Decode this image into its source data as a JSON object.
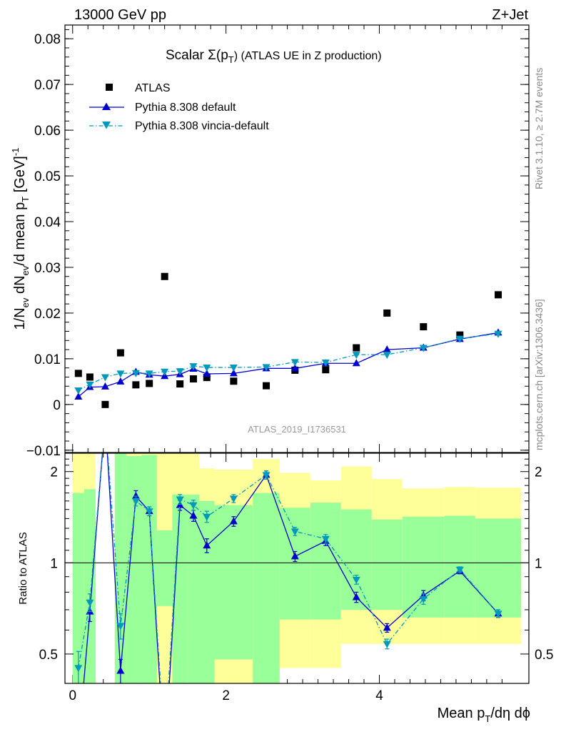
{
  "header": {
    "energy_label": "13000 GeV pp",
    "process_label": "Z+Jet"
  },
  "side_labels": {
    "rivet": "Rivet 3.1.10, ≥ 2.7M events",
    "mcplots": "mcplots.cern.ch [arXiv:1306.3436]"
  },
  "colors": {
    "atlas": "#000000",
    "pythia_default": "#0000cc",
    "pythia_vincia": "#0099bb",
    "band_inner": "#99ff99",
    "band_outer": "#ffff99"
  },
  "chart_data": [
    {
      "type": "scatter",
      "title": "Scalar Σ(p_T) (ATLAS UE in Z production)",
      "title_parts": {
        "main": "Scalar Σ(p",
        "sub": "T",
        "rest": ") (ATLAS UE in Z production)"
      },
      "ylabel": "1/N_ev dN_ev/d mean p_T [GeV]^-1",
      "ylabel_parts": {
        "a": "1/N",
        "a_sub": "ev",
        "b": " dN",
        "b_sub": "ev",
        "c": "/d mean p",
        "c_sub": "T",
        "d": " [GeV]",
        "d_sup": "-1"
      },
      "watermark": "ATLAS_2019_I1736531",
      "xlim": [
        -0.1,
        5.95
      ],
      "ylim": [
        -0.0105,
        0.083
      ],
      "y_ticks": [
        -0.01,
        0,
        0.01,
        0.02,
        0.03,
        0.04,
        0.05,
        0.06,
        0.07,
        0.08
      ],
      "y_tick_labels": [
        "−0.01",
        "0",
        "0.01",
        "0.02",
        "0.03",
        "0.04",
        "0.05",
        "0.06",
        "0.07",
        "0.08"
      ],
      "legend_position": "top-left",
      "series": [
        {
          "name": "ATLAS",
          "marker": "square",
          "x": [
            0.075,
            0.225,
            0.425,
            0.625,
            0.825,
            1.0,
            1.2,
            1.4,
            1.575,
            1.75,
            2.1,
            2.525,
            2.9,
            3.3,
            3.7,
            4.1,
            4.575,
            5.05,
            5.55
          ],
          "y": [
            0.0068,
            0.006,
            0.0,
            0.0113,
            0.0043,
            0.0046,
            0.028,
            0.0045,
            0.0056,
            0.0059,
            0.0051,
            0.0041,
            0.0075,
            0.0076,
            0.0124,
            0.02,
            0.017,
            0.0152,
            0.024
          ]
        },
        {
          "name": "Pythia 8.308 default",
          "marker": "triangle-up",
          "line": "solid",
          "x": [
            0.075,
            0.225,
            0.425,
            0.625,
            0.825,
            1.0,
            1.2,
            1.4,
            1.575,
            1.75,
            2.1,
            2.525,
            2.9,
            3.3,
            3.7,
            4.1,
            4.575,
            5.05,
            5.55
          ],
          "y": [
            0.0017,
            0.0038,
            0.0039,
            0.005,
            0.0071,
            0.0065,
            0.0062,
            0.0066,
            0.0078,
            0.0067,
            0.0068,
            0.0079,
            0.0079,
            0.009,
            0.009,
            0.012,
            0.0124,
            0.0143,
            0.0157
          ]
        },
        {
          "name": "Pythia 8.308 vincia-default",
          "marker": "triangle-down",
          "line": "dash-dot",
          "x": [
            0.075,
            0.225,
            0.425,
            0.625,
            0.825,
            1.0,
            1.2,
            1.4,
            1.575,
            1.75,
            2.1,
            2.525,
            2.9,
            3.3,
            3.7,
            4.1,
            4.575,
            5.05,
            5.55
          ],
          "y": [
            0.0031,
            0.0044,
            0.006,
            0.0068,
            0.0069,
            0.0068,
            0.0072,
            0.0073,
            0.0084,
            0.0081,
            0.0081,
            0.0082,
            0.0093,
            0.0092,
            0.0109,
            0.0109,
            0.0124,
            0.0144,
            0.0155
          ]
        }
      ]
    },
    {
      "type": "line",
      "ylabel": "Ratio to ATLAS",
      "xlabel": "Mean p_T/dη dϕ",
      "xlabel_parts": {
        "a": "Mean p",
        "a_sub": "T",
        "b": "/dη dϕ"
      },
      "xlim": [
        -0.1,
        5.95
      ],
      "ylim": [
        0.4,
        2.3
      ],
      "y_scale": "log",
      "x_ticks": [
        0,
        2,
        4
      ],
      "y_ticks": [
        0.5,
        1,
        2
      ],
      "reference_line": 1,
      "band_bins": [
        {
          "x0": 0.0,
          "x1": 0.15,
          "in_lo": 0.3,
          "in_hi": 1.7,
          "out_lo": 0.3,
          "out_hi": 2.3
        },
        {
          "x0": 0.15,
          "x1": 0.3,
          "in_lo": 0.3,
          "in_hi": 1.75,
          "out_lo": 0.3,
          "out_hi": 2.3
        },
        {
          "x0": 0.55,
          "x1": 0.7,
          "in_lo": 0.3,
          "in_hi": 2.3,
          "out_lo": 0.3,
          "out_hi": 2.3
        },
        {
          "x0": 0.7,
          "x1": 0.9,
          "in_lo": 0.3,
          "in_hi": 2.25,
          "out_lo": 0.3,
          "out_hi": 2.3
        },
        {
          "x0": 0.9,
          "x1": 1.1,
          "in_lo": 0.3,
          "in_hi": 2.27,
          "out_lo": 0.3,
          "out_hi": 2.3
        },
        {
          "x0": 1.1,
          "x1": 1.3,
          "in_lo": 0.72,
          "in_hi": 1.28,
          "out_lo": 0.3,
          "out_hi": 2.3
        },
        {
          "x0": 1.3,
          "x1": 1.5,
          "in_lo": 0.3,
          "in_hi": 1.68,
          "out_lo": 0.3,
          "out_hi": 2.3
        },
        {
          "x0": 1.5,
          "x1": 1.65,
          "in_lo": 0.3,
          "in_hi": 1.68,
          "out_lo": 0.3,
          "out_hi": 2.3
        },
        {
          "x0": 1.65,
          "x1": 1.85,
          "in_lo": 0.3,
          "in_hi": 1.6,
          "out_lo": 0.3,
          "out_hi": 2.05
        },
        {
          "x0": 1.85,
          "x1": 2.35,
          "in_lo": 0.48,
          "in_hi": 1.55,
          "out_lo": 0.3,
          "out_hi": 2.03
        },
        {
          "x0": 2.35,
          "x1": 2.7,
          "in_lo": 0.3,
          "in_hi": 1.7,
          "out_lo": 0.3,
          "out_hi": 2.2
        },
        {
          "x0": 2.7,
          "x1": 3.1,
          "in_lo": 0.65,
          "in_hi": 1.52,
          "out_lo": 0.45,
          "out_hi": 1.98
        },
        {
          "x0": 3.1,
          "x1": 3.5,
          "in_lo": 0.65,
          "in_hi": 1.58,
          "out_lo": 0.45,
          "out_hi": 1.87
        },
        {
          "x0": 3.5,
          "x1": 3.9,
          "in_lo": 0.7,
          "in_hi": 1.5,
          "out_lo": 0.54,
          "out_hi": 2.08
        },
        {
          "x0": 3.9,
          "x1": 4.3,
          "in_lo": 0.7,
          "in_hi": 1.39,
          "out_lo": 0.54,
          "out_hi": 1.89
        },
        {
          "x0": 4.3,
          "x1": 4.85,
          "in_lo": 0.66,
          "in_hi": 1.42,
          "out_lo": 0.54,
          "out_hi": 1.76
        },
        {
          "x0": 4.85,
          "x1": 5.25,
          "in_lo": 0.66,
          "in_hi": 1.43,
          "out_lo": 0.54,
          "out_hi": 1.78
        },
        {
          "x0": 5.25,
          "x1": 5.85,
          "in_lo": 0.66,
          "in_hi": 1.4,
          "out_lo": 0.54,
          "out_hi": 1.77
        }
      ],
      "series": [
        {
          "name": "Pythia 8.308 default",
          "x": [
            0.075,
            0.225,
            0.425,
            0.625,
            0.825,
            1.0,
            1.2,
            1.4,
            1.575,
            1.75,
            2.1,
            2.525,
            2.9,
            3.3,
            3.7,
            4.1,
            4.575,
            5.05,
            5.55
          ],
          "y": [
            0.25,
            0.69,
            3.0,
            0.44,
            1.66,
            1.48,
            0.22,
            1.55,
            1.43,
            1.14,
            1.37,
            1.95,
            1.05,
            1.18,
            0.77,
            0.61,
            0.78,
            0.94,
            0.68
          ],
          "err": [
            0.0,
            0.05,
            0.0,
            0.04,
            0.07,
            0.05,
            0.0,
            0.06,
            0.06,
            0.06,
            0.05,
            0.06,
            0.04,
            0.04,
            0.03,
            0.02,
            0.03,
            0.02,
            0.02
          ]
        },
        {
          "name": "Pythia 8.308 vincia-default",
          "x": [
            0.075,
            0.225,
            0.425,
            0.625,
            0.825,
            1.0,
            1.2,
            1.4,
            1.575,
            1.75,
            2.1,
            2.525,
            2.9,
            3.3,
            3.7,
            4.1,
            4.575,
            5.05,
            5.55
          ],
          "y": [
            0.45,
            0.74,
            3.0,
            0.62,
            1.6,
            1.48,
            0.25,
            1.62,
            1.55,
            1.42,
            1.63,
            1.95,
            1.27,
            1.2,
            0.88,
            0.54,
            0.76,
            0.95,
            0.68
          ],
          "err": [
            0.06,
            0.05,
            0.0,
            0.06,
            0.06,
            0.05,
            0.0,
            0.06,
            0.06,
            0.06,
            0.05,
            0.06,
            0.04,
            0.04,
            0.03,
            0.02,
            0.03,
            0.02,
            0.02
          ]
        }
      ]
    }
  ]
}
